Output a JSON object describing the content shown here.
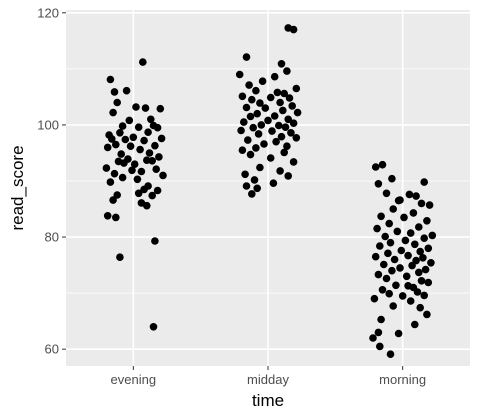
{
  "chart_data": {
    "type": "scatter",
    "title": "",
    "xlabel": "time",
    "ylabel": "read_score",
    "categories": [
      "evening",
      "midday",
      "morning"
    ],
    "ylim": [
      57,
      120.5
    ],
    "yticks": [
      60,
      80,
      100,
      120
    ],
    "grid": true,
    "point_color": "#000000",
    "panel_color": "#ebebeb",
    "grid_color": "#ffffff",
    "series": [
      {
        "x": [
          "evening",
          "evening",
          "evening",
          "evening",
          "evening",
          "evening",
          "evening",
          "evening",
          "evening",
          "evening",
          "evening",
          "evening",
          "evening",
          "evening",
          "evening",
          "evening",
          "evening",
          "evening",
          "evening",
          "evening",
          "evening",
          "evening",
          "evening",
          "evening",
          "evening",
          "evening",
          "evening",
          "evening",
          "evening",
          "evening",
          "evening",
          "evening",
          "evening",
          "evening",
          "evening",
          "evening",
          "evening",
          "evening",
          "evening",
          "evening",
          "evening",
          "evening",
          "evening",
          "evening",
          "evening",
          "evening",
          "evening",
          "evening",
          "evening",
          "evening",
          "evening",
          "evening",
          "evening",
          "evening",
          "evening",
          "evening",
          "evening",
          "evening",
          "evening",
          "evening",
          "midday",
          "midday",
          "midday",
          "midday",
          "midday",
          "midday",
          "midday",
          "midday",
          "midday",
          "midday",
          "midday",
          "midday",
          "midday",
          "midday",
          "midday",
          "midday",
          "midday",
          "midday",
          "midday",
          "midday",
          "midday",
          "midday",
          "midday",
          "midday",
          "midday",
          "midday",
          "midday",
          "midday",
          "midday",
          "midday",
          "midday",
          "midday",
          "midday",
          "midday",
          "midday",
          "midday",
          "midday",
          "midday",
          "midday",
          "midday",
          "midday",
          "midday",
          "midday",
          "midday",
          "midday",
          "midday",
          "midday",
          "midday",
          "midday",
          "midday",
          "midday",
          "midday",
          "midday",
          "midday",
          "midday",
          "midday",
          "midday",
          "midday",
          "midday",
          "midday",
          "morning",
          "morning",
          "morning",
          "morning",
          "morning",
          "morning",
          "morning",
          "morning",
          "morning",
          "morning",
          "morning",
          "morning",
          "morning",
          "morning",
          "morning",
          "morning",
          "morning",
          "morning",
          "morning",
          "morning",
          "morning",
          "morning",
          "morning",
          "morning",
          "morning",
          "morning",
          "morning",
          "morning",
          "morning",
          "morning",
          "morning",
          "morning",
          "morning",
          "morning",
          "morning",
          "morning",
          "morning",
          "morning",
          "morning",
          "morning",
          "morning",
          "morning",
          "morning",
          "morning",
          "morning",
          "morning",
          "morning",
          "morning",
          "morning",
          "morning",
          "morning",
          "morning",
          "morning",
          "morning",
          "morning",
          "morning",
          "morning",
          "morning",
          "morning",
          "morning",
          "morning",
          "morning",
          "morning",
          "morning",
          "morning",
          "morning",
          "morning",
          "morning",
          "morning",
          "morning"
        ],
        "jitter": [
          -0.17,
          0.07,
          -0.14,
          -0.12,
          0.02,
          -0.05,
          0.09,
          -0.15,
          0.2,
          -0.03,
          0.13,
          -0.08,
          0.15,
          -0.18,
          0.04,
          0.18,
          -0.1,
          0.11,
          -0.16,
          0.0,
          0.21,
          -0.06,
          0.08,
          -0.13,
          0.16,
          -0.02,
          0.05,
          -0.19,
          0.12,
          -0.09,
          0.19,
          -0.04,
          0.1,
          -0.11,
          0.14,
          -0.07,
          0.01,
          -0.2,
          0.17,
          -0.01,
          0.06,
          -0.14,
          0.22,
          -0.08,
          0.03,
          -0.17,
          0.11,
          0.08,
          -0.12,
          0.18,
          0.04,
          -0.15,
          0.14,
          0.06,
          0.1,
          -0.13,
          -0.19,
          0.16,
          -0.1,
          0.15,
          -0.21,
          0.15,
          0.19,
          -0.16,
          0.1,
          0.14,
          -0.14,
          0.05,
          -0.04,
          0.21,
          -0.09,
          0.07,
          0.12,
          -0.19,
          0.02,
          0.16,
          -0.12,
          0.09,
          -0.06,
          0.18,
          -0.16,
          -0.02,
          0.11,
          0.22,
          -0.08,
          0.05,
          -0.13,
          0.15,
          0.0,
          -0.18,
          0.19,
          -0.05,
          0.08,
          0.13,
          -0.11,
          -0.2,
          0.03,
          0.17,
          -0.07,
          0.1,
          0.21,
          -0.15,
          0.06,
          -0.03,
          0.14,
          -0.09,
          -0.19,
          0.12,
          -0.13,
          0.02,
          0.19,
          -0.06,
          0.09,
          -0.17,
          0.15,
          -0.1,
          0.04,
          -0.16,
          -0.08,
          -0.12,
          -0.2,
          -0.15,
          -0.08,
          0.16,
          -0.18,
          0.05,
          0.1,
          -0.12,
          -0.03,
          0.14,
          0.2,
          -0.07,
          0.08,
          -0.16,
          0.01,
          0.18,
          -0.1,
          0.12,
          -0.19,
          -0.04,
          0.06,
          0.22,
          -0.13,
          0.16,
          0.02,
          -0.09,
          0.09,
          -0.17,
          0.19,
          -0.01,
          0.13,
          -0.11,
          0.04,
          -0.2,
          0.15,
          -0.06,
          0.1,
          0.21,
          -0.14,
          0.07,
          -0.02,
          0.17,
          -0.08,
          0.12,
          -0.18,
          0.03,
          -0.12,
          0.14,
          0.19,
          -0.05,
          0.08,
          -0.15,
          0.11,
          -0.1,
          0.0,
          0.16,
          -0.21,
          0.06,
          -0.07,
          0.13,
          0.18,
          -0.16,
          0.09,
          -0.03,
          -0.22,
          -0.18,
          -0.17,
          -0.09,
          0.04,
          -0.02
        ],
        "y": [
          108.1,
          111.2,
          105.9,
          104.0,
          103.2,
          106.1,
          103.0,
          102.2,
          102.9,
          100.8,
          101.0,
          99.8,
          99.9,
          98.2,
          99.6,
          99.5,
          98.6,
          98.7,
          97.5,
          97.8,
          97.6,
          97.4,
          97.2,
          96.5,
          96.3,
          96.2,
          95.6,
          96.0,
          95.0,
          94.8,
          94.3,
          93.9,
          93.7,
          93.5,
          93.6,
          93.2,
          93.0,
          92.3,
          92.1,
          91.9,
          91.7,
          91.3,
          91.0,
          90.6,
          90.3,
          89.8,
          89.1,
          88.5,
          87.5,
          88.3,
          87.8,
          86.6,
          87.4,
          86.1,
          85.6,
          83.5,
          83.8,
          79.3,
          76.4,
          64.0,
          109.0,
          117.3,
          117.0,
          112.1,
          110.9,
          109.6,
          107.1,
          108.6,
          107.8,
          106.5,
          106.1,
          105.8,
          105.6,
          105.1,
          104.9,
          104.8,
          104.5,
          104.0,
          103.9,
          103.4,
          103.1,
          103.0,
          102.6,
          102.2,
          102.0,
          101.6,
          101.5,
          101.0,
          100.8,
          100.5,
          100.3,
          100.0,
          99.9,
          99.6,
          99.5,
          99.0,
          98.9,
          98.6,
          98.4,
          97.9,
          97.7,
          97.3,
          97.0,
          96.6,
          96.2,
          95.9,
          95.5,
          95.1,
          94.7,
          94.1,
          93.4,
          92.4,
          91.8,
          91.2,
          90.9,
          90.2,
          89.6,
          89.1,
          88.7,
          87.7,
          92.5,
          92.9,
          90.4,
          89.8,
          89.5,
          87.6,
          87.3,
          87.8,
          86.5,
          86.0,
          85.7,
          85.0,
          84.3,
          83.7,
          83.5,
          82.9,
          82.4,
          81.8,
          81.5,
          81.0,
          80.7,
          80.3,
          80.1,
          79.8,
          79.4,
          79.0,
          78.7,
          78.4,
          78.0,
          77.6,
          77.4,
          77.1,
          76.7,
          76.5,
          76.3,
          76.0,
          75.8,
          75.4,
          75.1,
          74.9,
          74.5,
          74.2,
          74.0,
          73.7,
          73.3,
          73.0,
          72.6,
          72.2,
          71.9,
          71.4,
          71.0,
          70.6,
          70.2,
          69.9,
          69.5,
          69.6,
          69.0,
          68.6,
          67.7,
          67.4,
          66.2,
          65.3,
          64.4,
          62.8,
          62.0,
          63.0,
          60.5,
          59.1,
          71.3,
          86.6
        ]
      }
    ]
  }
}
